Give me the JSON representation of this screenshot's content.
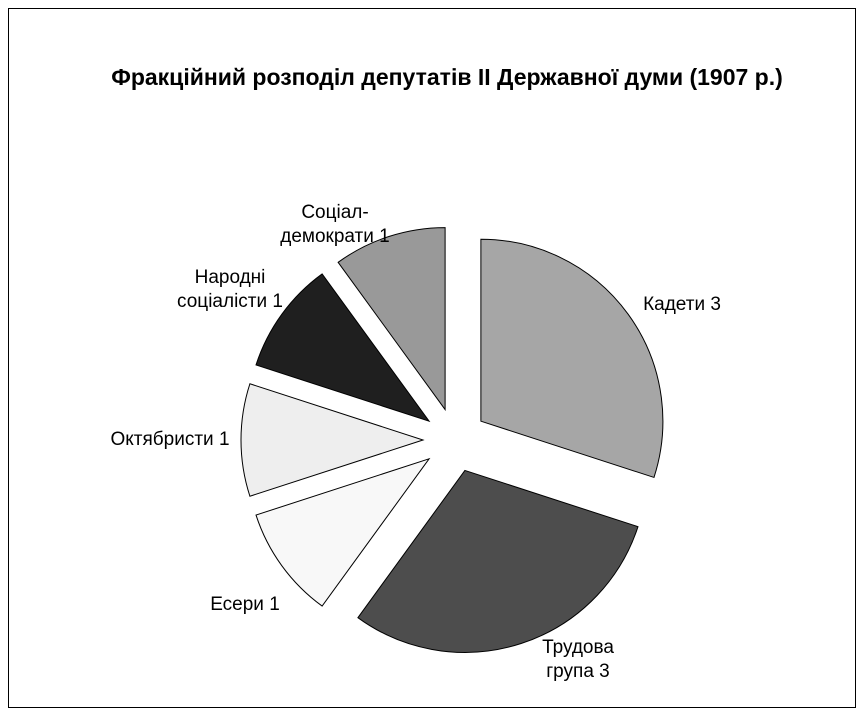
{
  "chart_data": {
    "type": "pie",
    "title": "Фракційний розподіл депутатів ІІ Державної думи (1907 р.)",
    "categories": [
      "Кадети",
      "Трудова група",
      "Есери",
      "Октябристи",
      "Народні соціалісти",
      "Соціал-демократи"
    ],
    "values": [
      3,
      3,
      1,
      1,
      1,
      1
    ],
    "colors": [
      "#a6a6a6",
      "#4d4d4d",
      "#f8f8f8",
      "#eeeeee",
      "#1f1f1f",
      "#999999"
    ]
  }
}
